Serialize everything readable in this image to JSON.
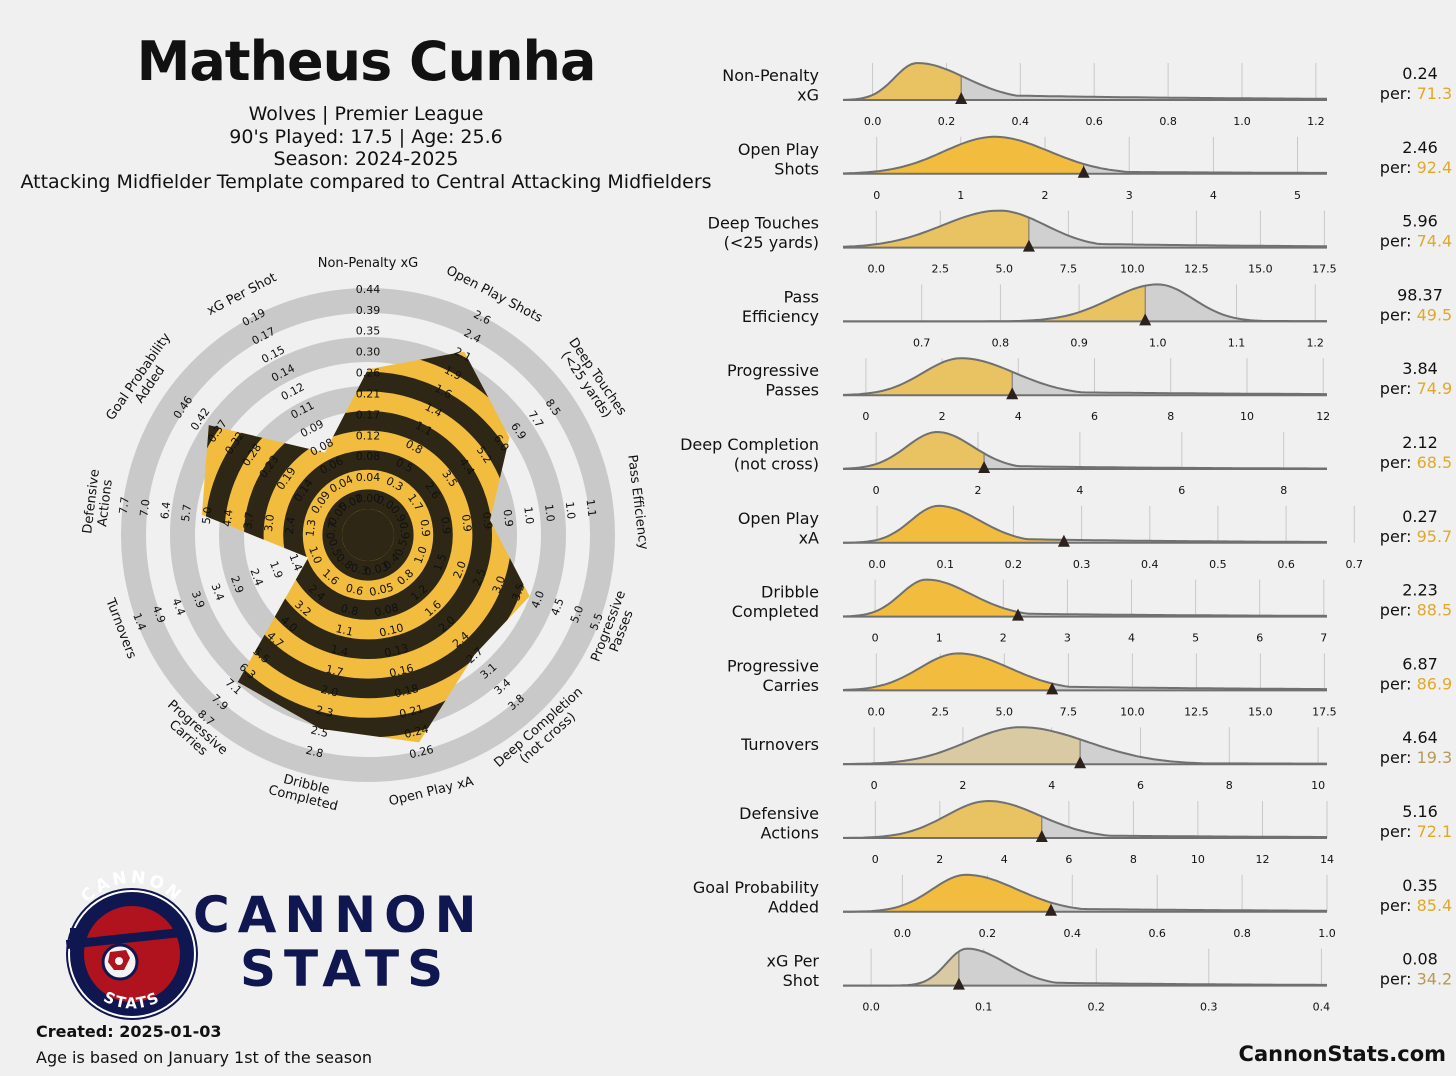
{
  "header": {
    "player": "Matheus Cunha",
    "line1": "Wolves | Premier League",
    "line2": "90's Played: 17.5 | Age: 25.6",
    "line3": "Season: 2024-2025",
    "line4": "Attacking Midfielder Template compared to Central Attacking Midfielders"
  },
  "brand": {
    "logo_ring_top": "CANNON",
    "logo_ring_bottom": "STATS",
    "word1": "CANNON",
    "word2": "STATS"
  },
  "footer": {
    "created": "Created: 2025-01-03",
    "note": "Age is based on January 1st of the season",
    "site": "CannonStats.com"
  },
  "colors": {
    "accent": "#f2bd3e",
    "dark": "#2e2715",
    "grey": "#c9c9c9",
    "navy": "#10164f",
    "red": "#b0131d"
  },
  "chart_data": [
    {
      "type": "radar",
      "metrics": [
        {
          "label": "Non-Penalty xG",
          "ticks": [
            "0.00",
            "0.04",
            "0.08",
            "0.12",
            "0.17",
            "0.21",
            "0.26",
            "0.30",
            "0.35",
            "0.39",
            "0.44"
          ],
          "percentile": 71.3
        },
        {
          "label": "Open Play Shots",
          "ticks": [
            "0.0",
            "0.3",
            "0.5",
            "0.8",
            "1.1",
            "1.4",
            "1.6",
            "1.9",
            "2.1",
            "2.4",
            "2.6"
          ],
          "percentile": 92.4
        },
        {
          "label": "Deep Touches (<25 yards)",
          "ticks": [
            "0.9",
            "1.7",
            "2.6",
            "3.5",
            "4.4",
            "5.2",
            "6.0",
            "6.9",
            "7.7",
            "8.5"
          ],
          "percentile": 74.4
        },
        {
          "label": "Pass Efficiency",
          "ticks": [
            "0.9",
            "0.9",
            "0.9",
            "0.9",
            "0.9",
            "0.9",
            "1.0",
            "1.0",
            "1.0",
            "1.1"
          ],
          "percentile": 49.5
        },
        {
          "label": "Progressive Passes",
          "ticks": [
            "0.5",
            "1.0",
            "1.5",
            "2.0",
            "2.5",
            "3.0",
            "3.5",
            "4.0",
            "4.5",
            "5.0",
            "5.5"
          ],
          "percentile": 74.9
        },
        {
          "label": "Deep Completion (not cross)",
          "ticks": [
            "0.4",
            "0.8",
            "1.2",
            "1.6",
            "2.0",
            "2.4",
            "2.7",
            "3.1",
            "3.4",
            "3.8"
          ],
          "percentile": 68.5
        },
        {
          "label": "Open Play xA",
          "ticks": [
            "0.03",
            "0.05",
            "0.08",
            "0.10",
            "0.13",
            "0.16",
            "0.18",
            "0.21",
            "0.24",
            "0.26"
          ],
          "percentile": 95.7
        },
        {
          "label": "Dribble Completed",
          "ticks": [
            "0.3",
            "0.6",
            "0.8",
            "1.1",
            "1.4",
            "1.7",
            "2.0",
            "2.3",
            "2.5",
            "2.8"
          ],
          "percentile": 88.5
        },
        {
          "label": "Progressive Carries",
          "ticks": [
            "0.8",
            "1.6",
            "2.4",
            "3.2",
            "4.0",
            "4.7",
            "5.5",
            "6.3",
            "7.1",
            "7.9",
            "8.7"
          ],
          "percentile": 86.9
        },
        {
          "label": "Turnovers",
          "ticks": [
            "0.5",
            "1.0",
            "1.4",
            "1.9",
            "2.4",
            "2.9",
            "3.4",
            "3.9",
            "4.4",
            "4.9",
            "1.4"
          ],
          "percentile": 19.3
        },
        {
          "label": "Defensive Actions",
          "ticks": [
            "0.7",
            "1.3",
            "2.4",
            "3.0",
            "3.7",
            "4.4",
            "5.0",
            "5.7",
            "6.4",
            "7.0",
            "7.7"
          ],
          "percentile": 72.1
        },
        {
          "label": "Goal Probability Added",
          "ticks": [
            "0.05",
            "0.09",
            "0.14",
            "0.19",
            "0.23",
            "0.28",
            "0.32",
            "0.37",
            "0.42",
            "0.46"
          ],
          "percentile": 85.4
        },
        {
          "label": "xG Per Shot",
          "ticks": [
            "0.02",
            "0.04",
            "0.06",
            "0.08",
            "0.09",
            "0.11",
            "0.12",
            "0.14",
            "0.15",
            "0.17",
            "0.19"
          ],
          "percentile": 34.2
        }
      ]
    },
    {
      "type": "area",
      "description": "percentile density strips",
      "rows": [
        {
          "label": [
            "Non-Penalty",
            "xG"
          ],
          "value": "0.24",
          "per_label": "per:",
          "percentile": "71.3",
          "value_num": 0.24,
          "xmin": -0.08,
          "xmax": 1.23,
          "ticks": [
            "0.0",
            "0.2",
            "0.4",
            "0.6",
            "0.8",
            "1.0",
            "1.2"
          ],
          "tick_vals": [
            0.0,
            0.2,
            0.4,
            0.6,
            0.8,
            1.0,
            1.2
          ],
          "peak": 0.12,
          "sd_l": 0.06,
          "sd_r": 0.13,
          "tail": 0.18,
          "faint": true
        },
        {
          "label": [
            "Open Play",
            "Shots"
          ],
          "value": "2.46",
          "per_label": "per:",
          "percentile": "92.4",
          "value_num": 2.46,
          "xmin": -0.4,
          "xmax": 5.35,
          "ticks": [
            "0",
            "1",
            "2",
            "3",
            "4",
            "5"
          ],
          "tick_vals": [
            0,
            1,
            2,
            3,
            4,
            5
          ],
          "peak": 1.4,
          "sd_l": 0.6,
          "sd_r": 0.65,
          "tail": 0.08,
          "faint": false
        },
        {
          "label": [
            "Deep Touches",
            "(<25 yards)"
          ],
          "value": "5.96",
          "per_label": "per:",
          "percentile": "74.4",
          "value_num": 5.96,
          "xmin": -1.3,
          "xmax": 17.6,
          "ticks": [
            "0.0",
            "2.5",
            "5.0",
            "7.5",
            "10.0",
            "12.5",
            "15.0",
            "17.5"
          ],
          "tick_vals": [
            0,
            2.5,
            5,
            7.5,
            10,
            12.5,
            15,
            17.5
          ],
          "peak": 4.8,
          "sd_l": 2.2,
          "sd_r": 1.8,
          "tail": 0.15,
          "faint": true
        },
        {
          "label": [
            "Pass",
            "Efficiency"
          ],
          "value": "98.37",
          "per_label": "per:",
          "percentile": "49.5",
          "value_num": 0.984,
          "xmin": 0.6,
          "xmax": 1.215,
          "ticks": [
            "0.7",
            "0.8",
            "0.9",
            "1.0",
            "1.1",
            "1.2"
          ],
          "tick_vals": [
            0.7,
            0.8,
            0.9,
            1.0,
            1.1,
            1.2
          ],
          "peak": 1.0,
          "sd_l": 0.06,
          "sd_r": 0.045,
          "tail": 0.02,
          "faint": true
        },
        {
          "label": [
            "Progressive",
            "Passes"
          ],
          "value": "3.84",
          "per_label": "per:",
          "percentile": "74.9",
          "value_num": 3.84,
          "xmin": -0.6,
          "xmax": 12.1,
          "ticks": [
            "0",
            "2",
            "4",
            "6",
            "8",
            "10",
            "12"
          ],
          "tick_vals": [
            0,
            2,
            4,
            6,
            8,
            10,
            12
          ],
          "peak": 2.5,
          "sd_l": 1.0,
          "sd_r": 1.4,
          "tail": 0.12,
          "faint": true
        },
        {
          "label": [
            "Deep Completion",
            "(not cross)"
          ],
          "value": "2.12",
          "per_label": "per:",
          "percentile": "68.5",
          "value_num": 2.12,
          "xmin": -0.65,
          "xmax": 8.85,
          "ticks": [
            "0",
            "2",
            "4",
            "6",
            "8"
          ],
          "tick_vals": [
            0,
            2,
            4,
            6,
            8
          ],
          "peak": 1.2,
          "sd_l": 0.6,
          "sd_r": 0.7,
          "tail": 0.12,
          "faint": true
        },
        {
          "label": [
            "Open Play",
            "xA"
          ],
          "value": "0.27",
          "per_label": "per:",
          "percentile": "95.7",
          "value_num": 0.274,
          "xmin": -0.05,
          "xmax": 0.66,
          "ticks": [
            "0.0",
            "0.1",
            "0.2",
            "0.3",
            "0.4",
            "0.5",
            "0.6",
            "0.7"
          ],
          "tick_vals": [
            0,
            0.1,
            0.2,
            0.3,
            0.4,
            0.5,
            0.6,
            0.7
          ],
          "peak": 0.09,
          "sd_l": 0.04,
          "sd_r": 0.06,
          "tail": 0.15,
          "faint": false
        },
        {
          "label": [
            "Dribble",
            "Completed"
          ],
          "value": "2.23",
          "per_label": "per:",
          "percentile": "88.5",
          "value_num": 2.23,
          "xmin": -0.5,
          "xmax": 7.05,
          "ticks": [
            "0",
            "1",
            "2",
            "3",
            "4",
            "5",
            "6",
            "7"
          ],
          "tick_vals": [
            0,
            1,
            2,
            3,
            4,
            5,
            6,
            7
          ],
          "peak": 0.8,
          "sd_l": 0.4,
          "sd_r": 0.7,
          "tail": 0.12,
          "faint": false
        },
        {
          "label": [
            "Progressive",
            "Carries"
          ],
          "value": "6.87",
          "per_label": "per:",
          "percentile": "86.9",
          "value_num": 6.87,
          "xmin": -1.3,
          "xmax": 17.6,
          "ticks": [
            "0.0",
            "2.5",
            "5.0",
            "7.5",
            "10.0",
            "12.5",
            "15.0",
            "17.5"
          ],
          "tick_vals": [
            0,
            2.5,
            5,
            7.5,
            10,
            12.5,
            15,
            17.5
          ],
          "peak": 3.2,
          "sd_l": 1.5,
          "sd_r": 2.0,
          "tail": 0.15,
          "faint": false
        },
        {
          "label": [
            "Turnovers"
          ],
          "value": "4.64",
          "per_label": "per:",
          "percentile": "19.3",
          "value_num": 4.64,
          "xmin": -0.7,
          "xmax": 10.2,
          "ticks": [
            "0",
            "2",
            "4",
            "6",
            "8",
            "10"
          ],
          "tick_vals": [
            0,
            2,
            4,
            6,
            8,
            10
          ],
          "peak": 3.3,
          "sd_l": 1.2,
          "sd_r": 1.5,
          "tail": 0.04,
          "faint": "very"
        },
        {
          "label": [
            "Defensive",
            "Actions"
          ],
          "value": "5.16",
          "per_label": "per:",
          "percentile": "72.1",
          "value_num": 5.16,
          "xmin": -1.0,
          "xmax": 14.0,
          "ticks": [
            "0",
            "2",
            "4",
            "6",
            "8",
            "10",
            "12",
            "14"
          ],
          "tick_vals": [
            0,
            2,
            4,
            6,
            8,
            10,
            12,
            14
          ],
          "peak": 3.5,
          "sd_l": 1.3,
          "sd_r": 1.6,
          "tail": 0.1,
          "faint": true
        },
        {
          "label": [
            "Goal Probability",
            "Added"
          ],
          "value": "0.35",
          "per_label": "per:",
          "percentile": "85.4",
          "value_num": 0.35,
          "xmin": -0.14,
          "xmax": 1.0,
          "ticks": [
            "0.0",
            "0.2",
            "0.4",
            "0.6",
            "0.8",
            "1.0"
          ],
          "tick_vals": [
            0,
            0.2,
            0.4,
            0.6,
            0.8,
            1.0
          ],
          "peak": 0.15,
          "sd_l": 0.08,
          "sd_r": 0.12,
          "tail": 0.12,
          "faint": false
        },
        {
          "label": [
            "xG Per",
            "Shot"
          ],
          "value": "0.08",
          "per_label": "per:",
          "percentile": "34.2",
          "value_num": 0.078,
          "xmin": -0.025,
          "xmax": 0.405,
          "ticks": [
            "0.0",
            "0.1",
            "0.2",
            "0.3",
            "0.4"
          ],
          "tick_vals": [
            0,
            0.1,
            0.2,
            0.3,
            0.4
          ],
          "peak": 0.085,
          "sd_l": 0.018,
          "sd_r": 0.035,
          "tail": 0.12,
          "faint": "very"
        }
      ]
    }
  ]
}
